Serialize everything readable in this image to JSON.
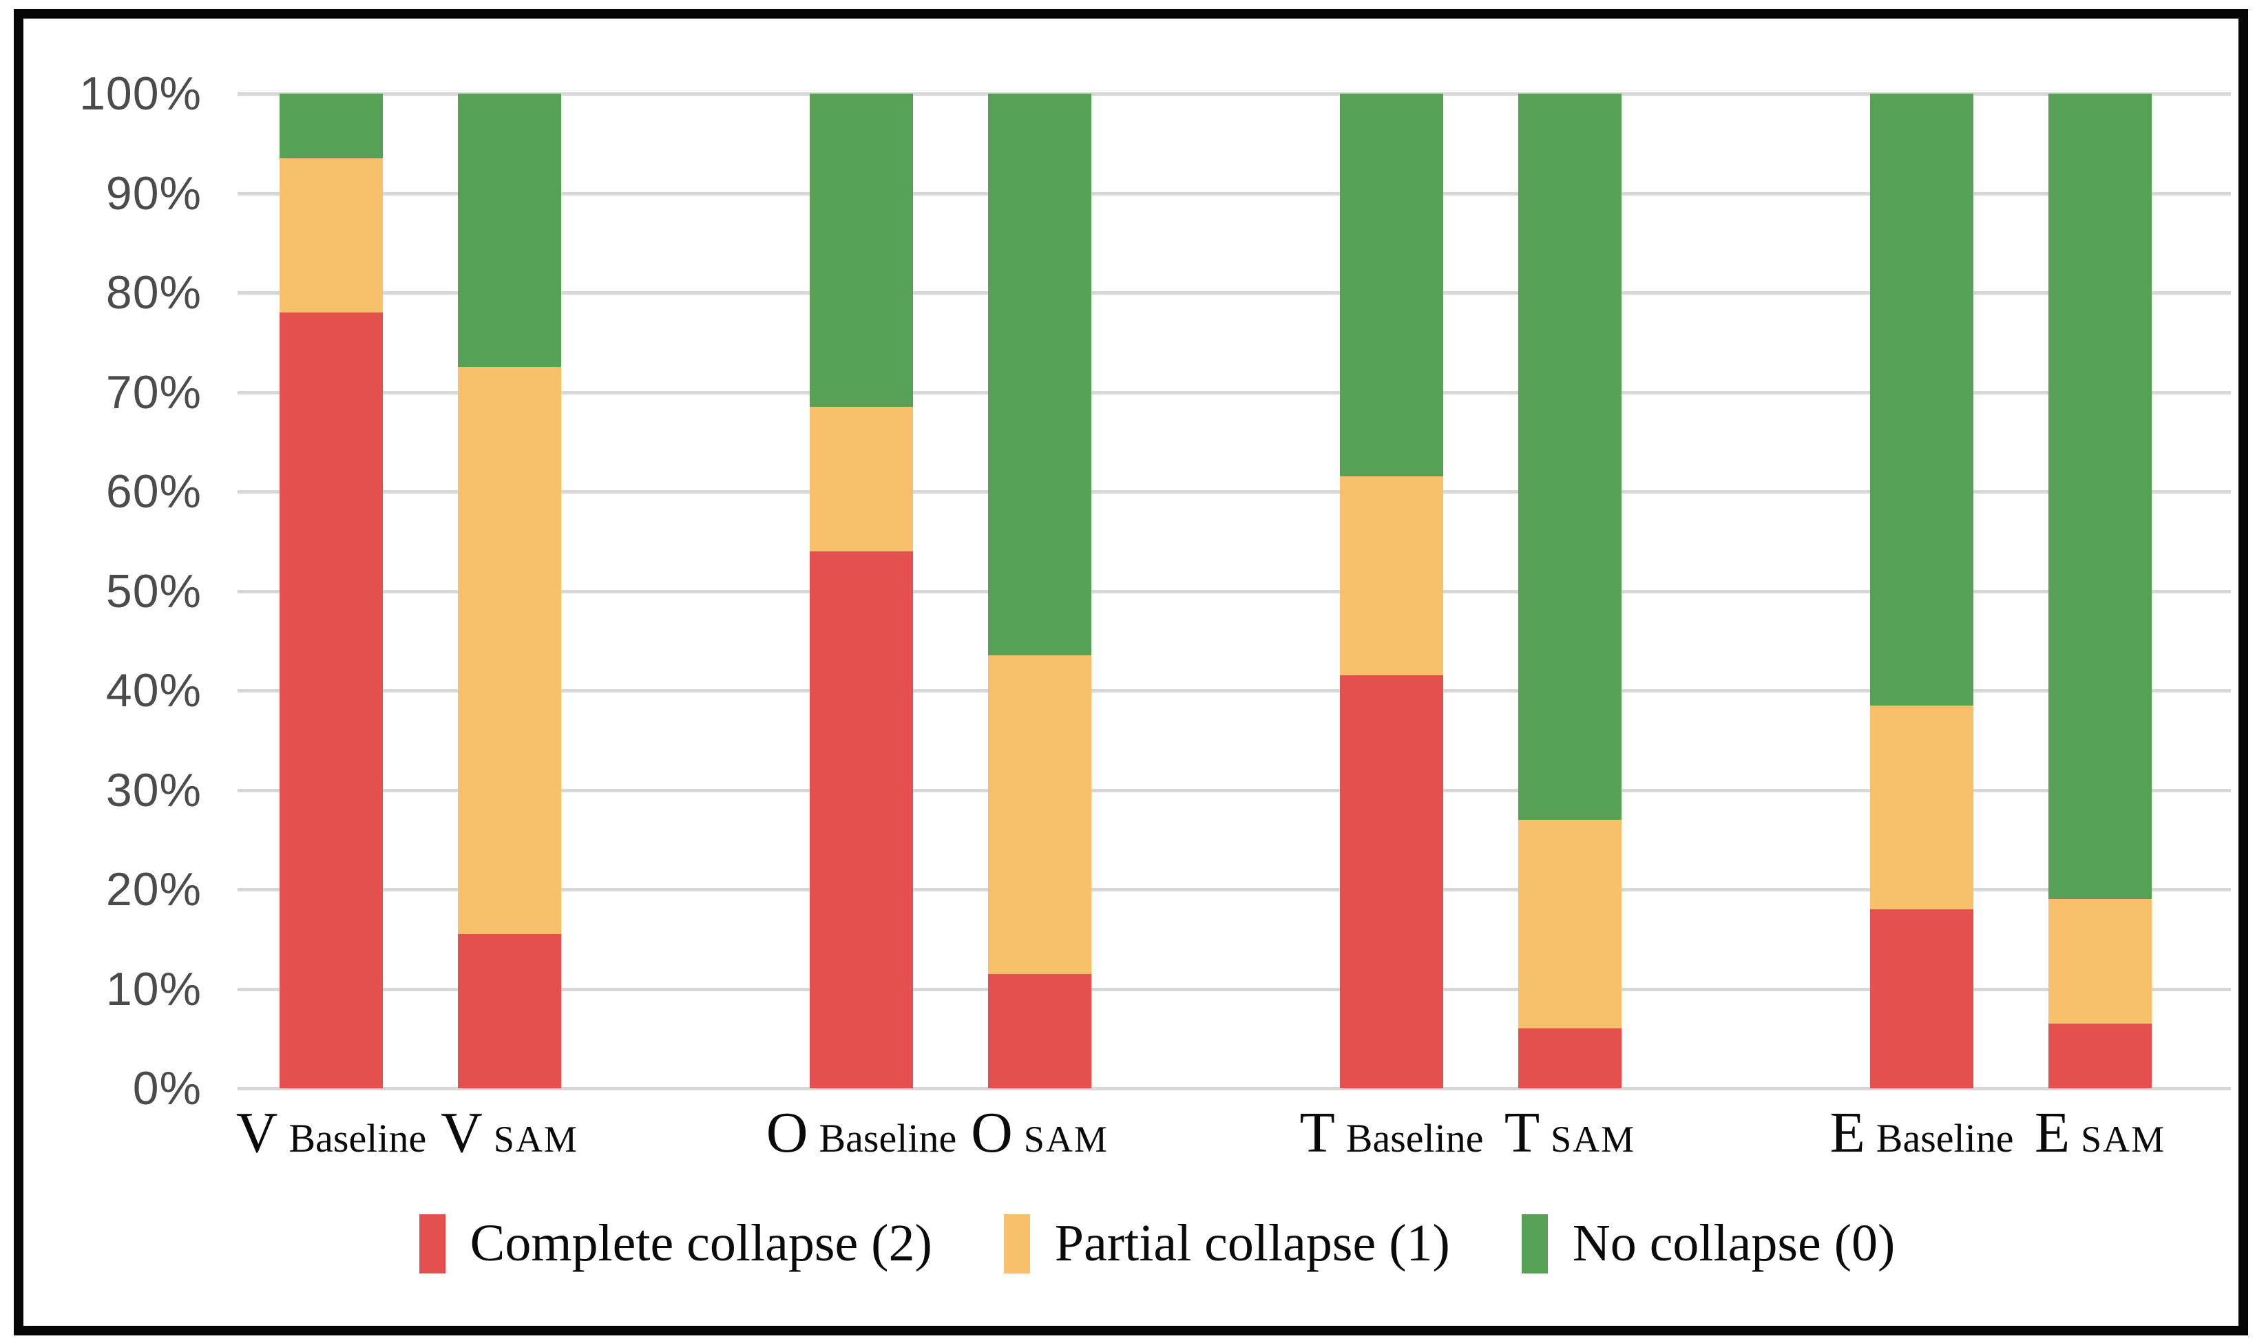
{
  "chart_data": {
    "type": "bar",
    "variant": "100-percent-stacked-column",
    "title": "",
    "xlabel": "",
    "ylabel": "",
    "y_axis": {
      "min": 0,
      "max": 100,
      "tick_step": 10,
      "tick_labels": [
        "0%",
        "10%",
        "20%",
        "30%",
        "40%",
        "50%",
        "60%",
        "70%",
        "80%",
        "90%",
        "100%"
      ],
      "grid": true,
      "grid_color": "#d7d7d7",
      "tick_text_color": "#4b4b4b"
    },
    "series": [
      {
        "key": "complete",
        "name": "Complete collapse (2)",
        "color": "#e4504e"
      },
      {
        "key": "partial",
        "name": "Partial collapse (1)",
        "color": "#f8c06a"
      },
      {
        "key": "none",
        "name": "No collapse (0)",
        "color": "#57a157"
      }
    ],
    "categories": [
      "V Baseline",
      "V SAM",
      "O Baseline",
      "O SAM",
      "T Baseline",
      "T SAM",
      "E Baseline",
      "E SAM"
    ],
    "groups": [
      {
        "letter": "V",
        "bars": [
          {
            "variant": "Baseline",
            "values": {
              "complete": 78.0,
              "partial": 15.5,
              "none": 6.5
            }
          },
          {
            "variant": "SAM",
            "values": {
              "complete": 15.5,
              "partial": 57.0,
              "none": 27.5
            }
          }
        ]
      },
      {
        "letter": "O",
        "bars": [
          {
            "variant": "Baseline",
            "values": {
              "complete": 54.0,
              "partial": 14.5,
              "none": 31.5
            }
          },
          {
            "variant": "SAM",
            "values": {
              "complete": 11.5,
              "partial": 32.0,
              "none": 56.5
            }
          }
        ]
      },
      {
        "letter": "T",
        "bars": [
          {
            "variant": "Baseline",
            "values": {
              "complete": 41.5,
              "partial": 20.0,
              "none": 38.5
            }
          },
          {
            "variant": "SAM",
            "values": {
              "complete": 6.0,
              "partial": 21.0,
              "none": 73.0
            }
          }
        ]
      },
      {
        "letter": "E",
        "bars": [
          {
            "variant": "Baseline",
            "values": {
              "complete": 18.0,
              "partial": 20.5,
              "none": 61.5
            }
          },
          {
            "variant": "SAM",
            "values": {
              "complete": 6.5,
              "partial": 12.5,
              "none": 81.0
            }
          }
        ]
      }
    ],
    "legend_position": "bottom",
    "frame_color": "#050505",
    "background_color": "#ffffff"
  }
}
